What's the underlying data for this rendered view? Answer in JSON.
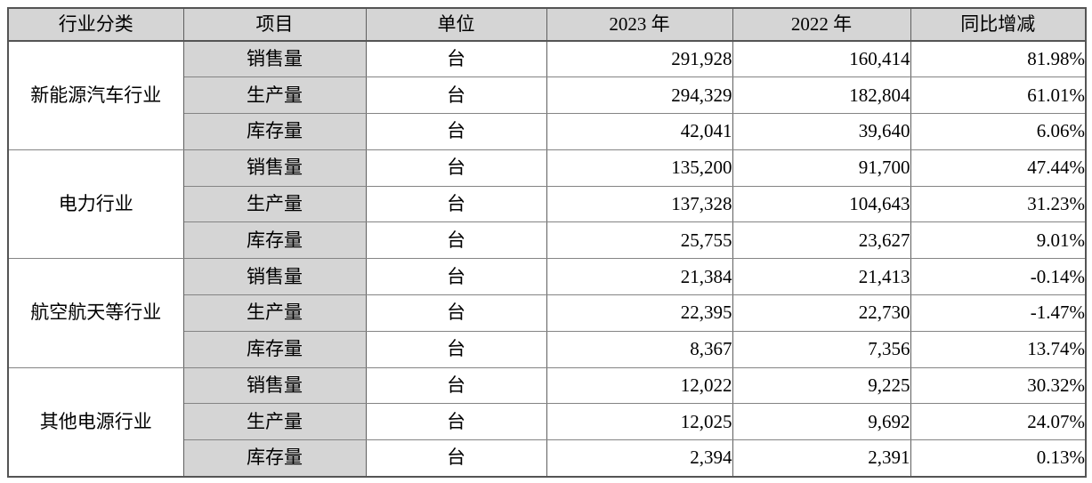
{
  "page": {
    "background_color": "#ffffff"
  },
  "table": {
    "columns": {
      "industry": "行业分类",
      "item": "项目",
      "unit": "单位",
      "y2023": "2023 年",
      "y2022": "2022 年",
      "yoy": "同比增减"
    },
    "colors": {
      "header_bg": "#d5d5d5",
      "item_col_bg": "#d5d5d5",
      "outer_border": "#545454",
      "inner_border": "#848484",
      "text": "#000000"
    },
    "groups": [
      {
        "industry": "新能源汽车行业",
        "rows": [
          {
            "item": "销售量",
            "unit": "台",
            "v2023": "291,928",
            "v2022": "160,414",
            "yoy": "81.98%"
          },
          {
            "item": "生产量",
            "unit": "台",
            "v2023": "294,329",
            "v2022": "182,804",
            "yoy": "61.01%"
          },
          {
            "item": "库存量",
            "unit": "台",
            "v2023": "42,041",
            "v2022": "39,640",
            "yoy": "6.06%"
          }
        ]
      },
      {
        "industry": "电力行业",
        "rows": [
          {
            "item": "销售量",
            "unit": "台",
            "v2023": "135,200",
            "v2022": "91,700",
            "yoy": "47.44%"
          },
          {
            "item": "生产量",
            "unit": "台",
            "v2023": "137,328",
            "v2022": "104,643",
            "yoy": "31.23%"
          },
          {
            "item": "库存量",
            "unit": "台",
            "v2023": "25,755",
            "v2022": "23,627",
            "yoy": "9.01%"
          }
        ]
      },
      {
        "industry": "航空航天等行业",
        "rows": [
          {
            "item": "销售量",
            "unit": "台",
            "v2023": "21,384",
            "v2022": "21,413",
            "yoy": "-0.14%"
          },
          {
            "item": "生产量",
            "unit": "台",
            "v2023": "22,395",
            "v2022": "22,730",
            "yoy": "-1.47%"
          },
          {
            "item": "库存量",
            "unit": "台",
            "v2023": "8,367",
            "v2022": "7,356",
            "yoy": "13.74%"
          }
        ]
      },
      {
        "industry": "其他电源行业",
        "rows": [
          {
            "item": "销售量",
            "unit": "台",
            "v2023": "12,022",
            "v2022": "9,225",
            "yoy": "30.32%"
          },
          {
            "item": "生产量",
            "unit": "台",
            "v2023": "12,025",
            "v2022": "9,692",
            "yoy": "24.07%"
          },
          {
            "item": "库存量",
            "unit": "台",
            "v2023": "2,394",
            "v2022": "2,391",
            "yoy": "0.13%"
          }
        ]
      }
    ]
  }
}
